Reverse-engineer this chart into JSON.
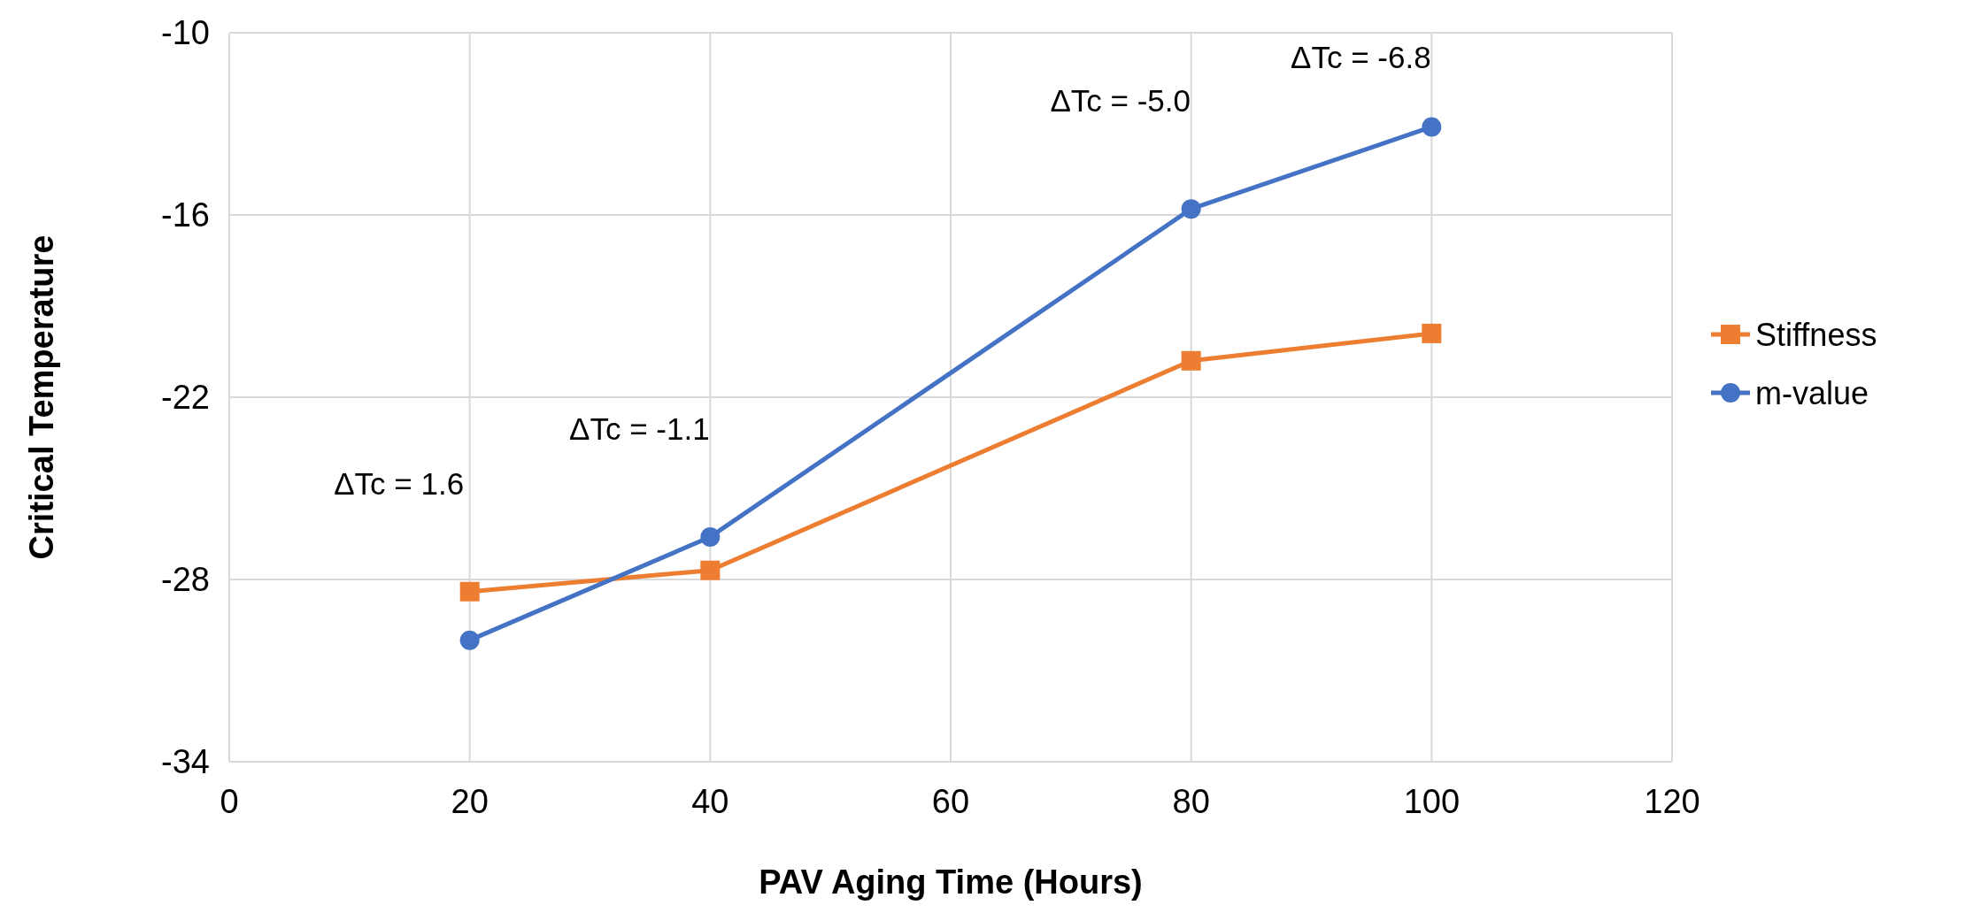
{
  "chart_data": {
    "type": "line",
    "xlabel": "PAV Aging Time (Hours)",
    "ylabel": "Critical Temperature",
    "x": [
      20,
      40,
      80,
      100
    ],
    "series": [
      {
        "name": "Stiffness",
        "color": "#ed7d31",
        "marker": "square",
        "values": [
          -28.4,
          -27.7,
          -20.8,
          -19.9
        ]
      },
      {
        "name": "m-value",
        "color": "#4472c4",
        "marker": "circle",
        "values": [
          -30.0,
          -26.6,
          -15.8,
          -13.1
        ]
      }
    ],
    "xlim": [
      0,
      120
    ],
    "xticks": [
      0,
      20,
      40,
      60,
      80,
      100,
      120
    ],
    "ylim": [
      -34,
      -10
    ],
    "yticks": [
      -34,
      -28,
      -22,
      -16,
      -10
    ],
    "grid": true,
    "legend": "right",
    "annotations": [
      "ΔTc = 1.6",
      "ΔTc = -1.1",
      "ΔTc = -5.0",
      "ΔTc = -6.8"
    ]
  }
}
